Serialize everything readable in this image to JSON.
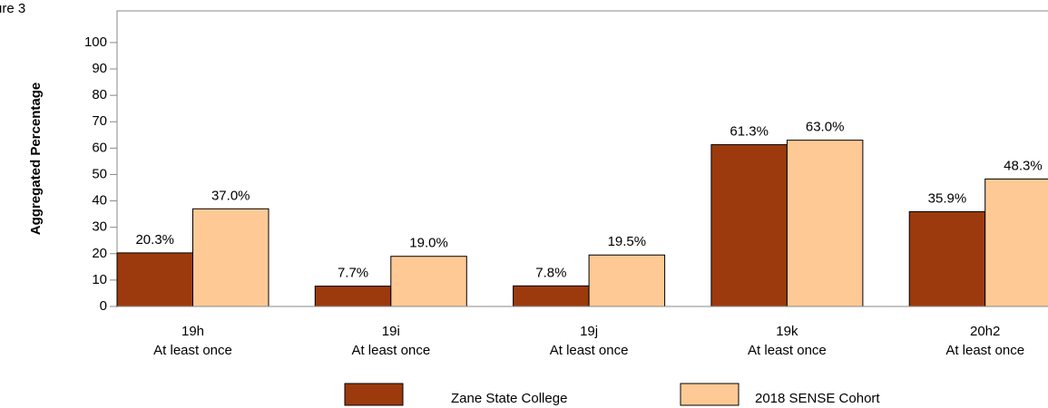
{
  "chart_data": {
    "type": "bar",
    "figure_label": "ure 3",
    "y_label": "Aggregated Percentage",
    "categories": [
      [
        "19h",
        "At least once"
      ],
      [
        "19i",
        "At least once"
      ],
      [
        "19j",
        "At least once"
      ],
      [
        "19k",
        "At least once"
      ],
      [
        "20h2",
        "At least once"
      ]
    ],
    "series": [
      {
        "name": "Zane State College",
        "color": "#9c3a0e",
        "values": [
          20.3,
          7.7,
          7.8,
          61.3,
          35.9
        ],
        "value_labels": [
          "20.3%",
          "7.7%",
          "7.8%",
          "61.3%",
          "35.9%"
        ]
      },
      {
        "name": "2018 SENSE Cohort",
        "color": "#fec994",
        "values": [
          37.0,
          19.0,
          19.5,
          63.0,
          48.3
        ],
        "value_labels": [
          "37.0%",
          "19.0%",
          "19.5%",
          "63.0%",
          "48.3%"
        ]
      }
    ],
    "ylim": [
      0,
      112
    ],
    "yticks": [
      0,
      10,
      20,
      30,
      40,
      50,
      60,
      70,
      80,
      90,
      100
    ],
    "grid": false,
    "legend": "bottom"
  }
}
